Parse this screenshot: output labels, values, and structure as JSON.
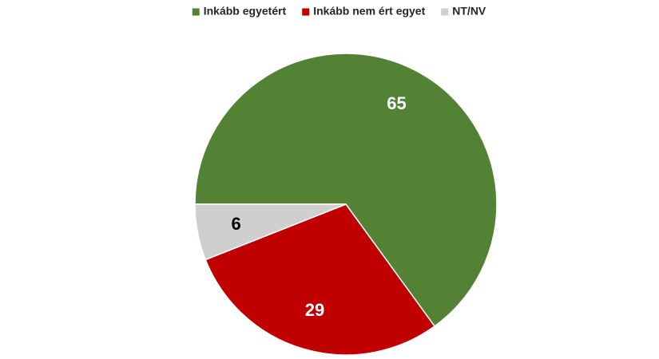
{
  "chart_data": {
    "type": "pie",
    "categories": [
      "Inkább egyetért",
      "Inkább nem ért egyet",
      "NT/NV"
    ],
    "values": [
      65,
      29,
      6
    ],
    "colors": [
      "#548235",
      "#c00000",
      "#d0cece"
    ],
    "legend": "top"
  }
}
